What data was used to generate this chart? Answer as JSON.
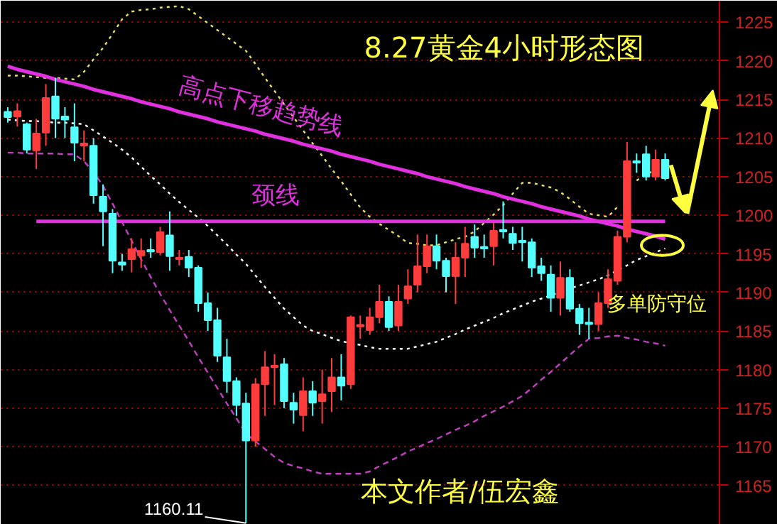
{
  "chart_data": {
    "type": "candlestick",
    "title": "8.27黄金4小时形态图",
    "categories": [
      null,
      null,
      null,
      null,
      null,
      null,
      null,
      null,
      null,
      null,
      null,
      null,
      null,
      null,
      null,
      null,
      null,
      null,
      null,
      null,
      null,
      null,
      null,
      null,
      null,
      null,
      null,
      null,
      null,
      null,
      null,
      null,
      null,
      null,
      null,
      null,
      null,
      null,
      null,
      null,
      null,
      null,
      null,
      null,
      null,
      null,
      null,
      null,
      null,
      null,
      null,
      null,
      null,
      null,
      null,
      null,
      null,
      null,
      null,
      null,
      null,
      null,
      null,
      null,
      null,
      null,
      null,
      null,
      null,
      null
    ],
    "ohlc": [
      [
        1213.4,
        1214,
        1212,
        1212.7
      ],
      [
        1212.8,
        1214.5,
        1211.5,
        1213.5
      ],
      [
        1211.8,
        1212,
        1208,
        1208.5
      ],
      [
        1208.4,
        1212.5,
        1206,
        1210.6
      ],
      [
        1210.7,
        1217,
        1209,
        1215.2
      ],
      [
        1215.4,
        1217.8,
        1210,
        1212.5
      ],
      [
        1212.8,
        1214,
        1210,
        1212.4
      ],
      [
        1211.4,
        1214.5,
        1207,
        1209.4
      ],
      [
        1209,
        1211,
        1207,
        1209.3
      ],
      [
        1209,
        1210,
        1201.5,
        1202.6
      ],
      [
        1202.4,
        1204,
        1196,
        1200.5
      ],
      [
        1200.2,
        1200.8,
        1192.5,
        1194.1
      ],
      [
        1193.9,
        1195,
        1192.8,
        1193.6
      ],
      [
        1194.3,
        1197,
        1192.6,
        1195.6
      ],
      [
        1194.8,
        1197,
        1193.2,
        1195.4
      ],
      [
        1195.5,
        1197,
        1194.5,
        1195.3
      ],
      [
        1195.2,
        1198.5,
        1194.8,
        1197.8
      ],
      [
        1197.4,
        1200.5,
        1192.8,
        1194.7
      ],
      [
        1194.3,
        1195.5,
        1193.5,
        1194.5
      ],
      [
        1194.6,
        1195.5,
        1192,
        1193.2
      ],
      [
        1193.2,
        1193.5,
        1187.5,
        1188.6
      ],
      [
        1188.6,
        1190,
        1185,
        1186.4
      ],
      [
        1186.4,
        1188,
        1181,
        1181.8
      ],
      [
        1181.6,
        1184,
        1177,
        1178.5
      ],
      [
        1178.5,
        1179,
        1174,
        1175.4
      ],
      [
        1175.6,
        1177,
        1160.11,
        1170.8
      ],
      [
        1170.8,
        1178.9,
        1170,
        1178.1
      ],
      [
        1178.1,
        1182.4,
        1174,
        1180.3
      ],
      [
        1180.3,
        1182,
        1175.4,
        1180.5
      ],
      [
        1180.7,
        1181.5,
        1175,
        1175.9
      ],
      [
        1175.7,
        1177,
        1173,
        1174.8
      ],
      [
        1174.1,
        1179,
        1172,
        1177.2
      ],
      [
        1177.2,
        1178.5,
        1174,
        1175.7
      ],
      [
        1175.9,
        1180,
        1173,
        1176.8
      ],
      [
        1177.2,
        1181.5,
        1174.5,
        1179
      ],
      [
        1179,
        1182,
        1176,
        1177.9
      ],
      [
        1178.1,
        1187,
        1177.5,
        1186.8
      ],
      [
        1185.6,
        1187,
        1184,
        1185.8
      ],
      [
        1185.1,
        1188,
        1184.5,
        1186.8
      ],
      [
        1186.8,
        1191,
        1186,
        1188.8
      ],
      [
        1188.8,
        1189.5,
        1185,
        1185.5
      ],
      [
        1185.7,
        1191,
        1185,
        1188.8
      ],
      [
        1189.2,
        1193,
        1188.5,
        1190.8
      ],
      [
        1191,
        1197.5,
        1190,
        1193.4
      ],
      [
        1193.4,
        1197.5,
        1192.5,
        1196
      ],
      [
        1196,
        1197.5,
        1193,
        1194.1
      ],
      [
        1194.1,
        1194.5,
        1190,
        1192.1
      ],
      [
        1192.1,
        1196.5,
        1188.5,
        1194.5
      ],
      [
        1194.5,
        1198.5,
        1192,
        1196.3
      ],
      [
        1197.2,
        1198.8,
        1194.5,
        1195.8
      ],
      [
        1195.9,
        1197.5,
        1194.5,
        1195.7
      ],
      [
        1196,
        1199,
        1193.5,
        1198
      ],
      [
        1198.1,
        1201.8,
        1197,
        1197.9
      ],
      [
        1197.6,
        1198.5,
        1195.5,
        1196.4
      ],
      [
        1196.7,
        1198.5,
        1194,
        1196.5
      ],
      [
        1196.5,
        1197,
        1192,
        1193.2
      ],
      [
        1193.4,
        1194.5,
        1191.5,
        1192.5
      ],
      [
        1192.3,
        1193.5,
        1187.5,
        1189.3
      ],
      [
        1189.3,
        1194,
        1187,
        1191.9
      ],
      [
        1191.9,
        1193,
        1187.5,
        1187.9
      ],
      [
        1187.9,
        1188.5,
        1184.5,
        1186
      ],
      [
        1186.1,
        1188,
        1184,
        1185.9
      ],
      [
        1185.9,
        1190,
        1185,
        1188.6
      ],
      [
        1188.6,
        1193,
        1188,
        1191.7
      ],
      [
        1191.5,
        1198,
        1191,
        1197.2
      ],
      [
        1197.2,
        1209.5,
        1196.5,
        1207
      ],
      [
        1207,
        1208,
        1205.5,
        1206.8
      ],
      [
        1207.9,
        1209,
        1204.5,
        1205
      ],
      [
        1205,
        1208.5,
        1204.5,
        1207.2
      ],
      [
        1207.2,
        1208,
        1204.5,
        1204.8
      ]
    ],
    "colors": [
      "#54ffff",
      "#ff3c3c",
      "#54ffff",
      "#ff3c3c",
      "#ff3c3c",
      "#54ffff",
      "#54ffff",
      "#54ffff",
      "#ff3c3c",
      "#54ffff",
      "#54ffff",
      "#54ffff",
      "#54ffff",
      "#ff3c3c",
      "#ff3c3c",
      "#54ffff",
      "#ff3c3c",
      "#54ffff",
      "#ff3c3c",
      "#54ffff",
      "#54ffff",
      "#54ffff",
      "#54ffff",
      "#54ffff",
      "#54ffff",
      "#54ffff",
      "#ff3c3c",
      "#ff3c3c",
      "#ff3c3c",
      "#54ffff",
      "#54ffff",
      "#ff3c3c",
      "#54ffff",
      "#ff3c3c",
      "#ff3c3c",
      "#54ffff",
      "#ff3c3c",
      "#ff3c3c",
      "#ff3c3c",
      "#ff3c3c",
      "#54ffff",
      "#ff3c3c",
      "#ff3c3c",
      "#ff3c3c",
      "#ff3c3c",
      "#54ffff",
      "#54ffff",
      "#ff3c3c",
      "#ff3c3c",
      "#54ffff",
      "#54ffff",
      "#ff3c3c",
      "#54ffff",
      "#54ffff",
      "#54ffff",
      "#54ffff",
      "#54ffff",
      "#54ffff",
      "#ff3c3c",
      "#54ffff",
      "#54ffff",
      "#54ffff",
      "#ff3c3c",
      "#ff3c3c",
      "#ff3c3c",
      "#ff3c3c",
      "#54ffff",
      "#54ffff",
      "#ff3c3c",
      "#54ffff"
    ],
    "series": [
      {
        "type": "line",
        "color": "#e8e060",
        "line_style": "dotted",
        "values": [
          1218.1,
          1218.1,
          1218.0,
          1217.9,
          1217.8,
          1217.8,
          1217.7,
          1217.6,
          1218.6,
          1220.2,
          1221.7,
          1223.5,
          1225.4,
          1226.4,
          1226.6,
          1226.7,
          1226.9,
          1227.0,
          1227.1,
          1226.7,
          1225.8,
          1224.9,
          1224.0,
          1223.1,
          1222.2,
          1221.3,
          1219.6,
          1217.8,
          1216.1,
          1214.4,
          1212.7,
          1211.0,
          1209.3,
          1207.7,
          1206.0,
          1204.4,
          1202.7,
          1201.0,
          1199.8,
          1198.9,
          1198.1,
          1197.3,
          1196.4,
          1196.3,
          1196.1,
          1196.1,
          1196.5,
          1196.9,
          1197.2,
          1197.9,
          1199.0,
          1200.1,
          1201.3,
          1202.8,
          1204.2,
          1204.2,
          1203.9,
          1203.6,
          1203.0,
          1202.1,
          1201.1,
          1200.2,
          1200.0,
          1199.8,
          1201.1,
          null,
          1204.5,
          1205.3,
          1205.9,
          1206.4
        ]
      },
      {
        "type": "line",
        "color": "#ffffff",
        "line_style": "dotted",
        "values": [
          1212.4,
          1212.3,
          1212.2,
          1212.2,
          1212.1,
          1212.0,
          1212.0,
          1211.9,
          1211.8,
          1211.0,
          1210.2,
          1209.4,
          1208.5,
          1207.5,
          1206.3,
          1205.1,
          1204.0,
          1202.8,
          1201.7,
          1200.7,
          1199.7,
          1198.6,
          1197.4,
          1196.2,
          1194.9,
          1193.7,
          1192.2,
          1190.7,
          1189.3,
          1187.9,
          1186.8,
          1185.7,
          1185.0,
          1184.6,
          1184.1,
          1183.7,
          1183.4,
          1183.2,
          1182.9,
          1182.7,
          1182.7,
          1182.7,
          1182.7,
          1183.0,
          1183.3,
          1183.6,
          1184.1,
          1184.6,
          1185.2,
          1185.7,
          1186.2,
          1186.7,
          1187.3,
          1187.8,
          1188.3,
          1188.8,
          1189.2,
          1189.6,
          1190.1,
          1190.5,
          1190.9,
          1191.3,
          1191.7,
          1192.2,
          1192.9,
          1193.5,
          1194.2,
          1194.7,
          1195.2,
          1195.7
        ]
      },
      {
        "type": "line",
        "color": "#c040c0",
        "line_style": "dashed",
        "values": [
          1208.1,
          1208.1,
          1208.0,
          1208.0,
          1208.0,
          1208.0,
          1207.9,
          1207.9,
          1207.0,
          1205.6,
          1203.8,
          1201.5,
          1199.1,
          1196.7,
          1194.3,
          1192.0,
          1189.8,
          1187.7,
          1185.7,
          1183.7,
          1181.6,
          1179.6,
          1177.6,
          1175.6,
          1173.7,
          1171.7,
          1170.7,
          1169.7,
          1168.7,
          1167.9,
          1167.5,
          1167.2,
          1166.8,
          1166.5,
          1166.5,
          1166.5,
          1166.5,
          1166.5,
          1166.8,
          1167.5,
          1168.1,
          1168.7,
          1169.4,
          1169.9,
          1170.5,
          1171.0,
          1171.6,
          1172.2,
          1172.7,
          1173.3,
          1174.0,
          1174.6,
          1175.2,
          1175.9,
          1176.6,
          1177.6,
          1178.7,
          1179.7,
          1180.8,
          1181.9,
          1183.0,
          1184.0,
          1184.1,
          1184.3,
          1184.4,
          1184.1,
          1183.9,
          1183.6,
          1183.4,
          1183.1
        ]
      },
      {
        "type": "line",
        "name": "高点下移趋势线",
        "color": "#e030e0",
        "line_style": "solid",
        "values": [
          1219.3,
          1218.9,
          1218.6,
          1218.3,
          1218.0,
          1217.6,
          1217.3,
          1217.0,
          1216.7,
          1216.3,
          1216.0,
          1215.7,
          1215.4,
          1215.1,
          1214.7,
          1214.4,
          1214.1,
          1213.8,
          1213.4,
          1213.1,
          1212.8,
          1212.5,
          1212.1,
          1211.8,
          1211.5,
          1211.2,
          1210.9,
          1210.5,
          1210.2,
          1209.9,
          1209.6,
          1209.2,
          1208.9,
          1208.6,
          1208.3,
          1207.9,
          1207.6,
          1207.3,
          1207.0,
          1206.6,
          1206.3,
          1206.0,
          1205.7,
          1205.4,
          1205.0,
          1204.7,
          1204.4,
          1204.1,
          1203.7,
          1203.4,
          1203.1,
          1202.8,
          1202.4,
          1202.1,
          1201.8,
          1201.5,
          1201.1,
          1200.8,
          1200.5,
          1200.2,
          1199.9,
          1199.5,
          1199.2,
          1198.9,
          1198.6,
          1198.2,
          1197.9,
          1197.6,
          1197.3,
          1196.9
        ]
      },
      {
        "type": "line",
        "name": "颈线",
        "color": "#e030e0",
        "line_style": "solid",
        "values": [
          null,
          null,
          null,
          1199.2,
          1199.2,
          1199.2,
          1199.2,
          1199.2,
          1199.2,
          1199.2,
          1199.2,
          1199.2,
          1199.2,
          1199.2,
          1199.2,
          1199.2,
          1199.2,
          1199.2,
          1199.2,
          1199.2,
          1199.2,
          1199.2,
          1199.2,
          1199.2,
          1199.2,
          1199.2,
          1199.2,
          1199.2,
          1199.2,
          1199.2,
          1199.2,
          1199.2,
          1199.2,
          1199.2,
          1199.2,
          1199.2,
          1199.2,
          1199.2,
          1199.2,
          1199.2,
          1199.2,
          1199.2,
          1199.2,
          1199.2,
          1199.2,
          1199.2,
          1199.2,
          1199.2,
          1199.2,
          1199.2,
          1199.2,
          1199.2,
          1199.2,
          1199.2,
          1199.2,
          1199.2,
          1199.2,
          1199.2,
          1199.2,
          1199.2,
          1199.2,
          1199.2,
          1199.2,
          1199.2,
          1199.2,
          1199.2,
          1199.2,
          1199.2,
          1199.2,
          1199.2
        ]
      }
    ],
    "ylim": [
      1159.9,
      1227.8
    ],
    "yticks": [
      1165,
      1170,
      1175,
      1180,
      1185,
      1190,
      1195,
      1200,
      1205,
      1210,
      1215,
      1220,
      1225
    ],
    "grid": "y",
    "tick_labels": "y",
    "annotations": [
      "1160.11",
      "多单防守位",
      "本文作者/伍宏鑫"
    ]
  }
}
